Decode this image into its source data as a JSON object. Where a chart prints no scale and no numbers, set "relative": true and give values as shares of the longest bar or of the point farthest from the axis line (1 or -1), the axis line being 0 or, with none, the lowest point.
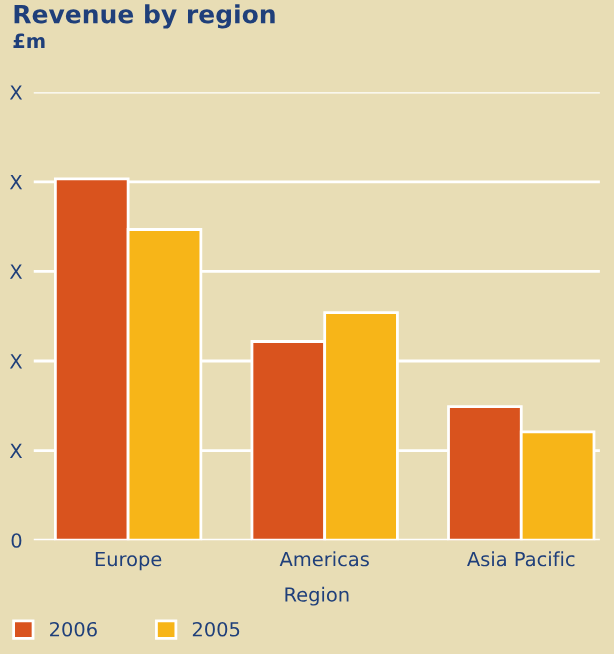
{
  "chart_data": {
    "type": "bar",
    "title": "Revenue by region",
    "xlabel": "Region",
    "categories": [
      "Europe",
      "Americas",
      "Asia Pacific"
    ],
    "series": [
      {
        "name": "2006",
        "color": "#d9531e",
        "values": [
          1,
          0.55,
          0.37
        ]
      },
      {
        "name": "2005",
        "color": "#f7b518",
        "values": [
          0.86,
          0.63,
          0.3
        ]
      }
    ],
    "relative": true,
    "annotations": [
      "£m",
      "0",
      "X",
      "X",
      "X",
      "X",
      "X"
    ],
    "grid": "y",
    "legend": "bottom left"
  }
}
